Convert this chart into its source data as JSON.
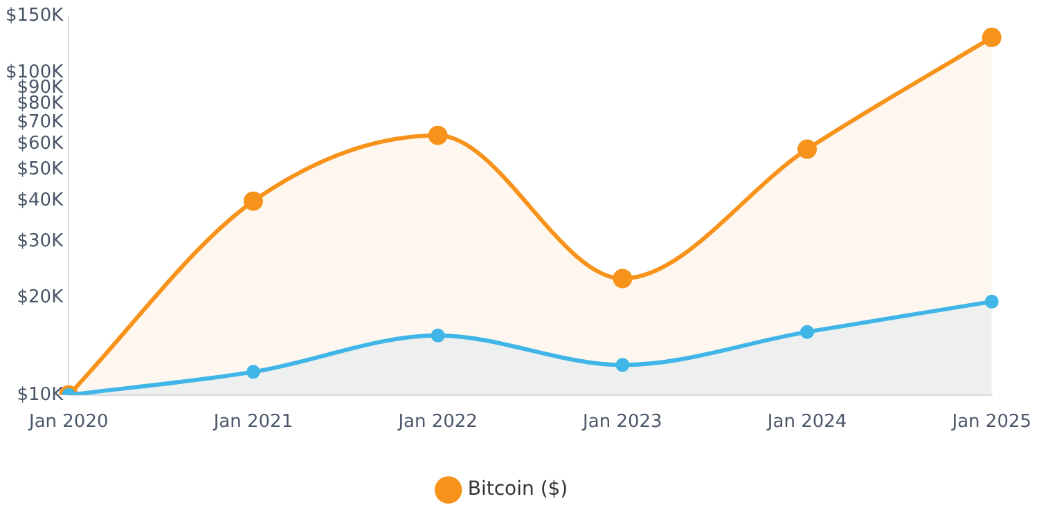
{
  "chart_data": {
    "type": "area",
    "categories": [
      "Jan 2020",
      "Jan 2021",
      "Jan 2022",
      "Jan 2023",
      "Jan 2024",
      "Jan 2025"
    ],
    "series": [
      {
        "name": "Bitcoin ($)",
        "color": "#f7931a",
        "values": [
          10000,
          40000,
          64000,
          23000,
          58000,
          129000
        ]
      },
      {
        "color": "#3fb5e8",
        "values": [
          10000,
          11800,
          15300,
          12400,
          15700,
          19500
        ]
      }
    ],
    "log": true,
    "ylim": [
      10000,
      150000
    ],
    "yticks": [
      {
        "value": 10000,
        "label": "$10K"
      },
      {
        "value": 20000,
        "label": "$20K"
      },
      {
        "value": 30000,
        "label": "$30K"
      },
      {
        "value": 40000,
        "label": "$40K"
      },
      {
        "value": 50000,
        "label": "$50K"
      },
      {
        "value": 60000,
        "label": "$60K"
      },
      {
        "value": 70000,
        "label": "$70K"
      },
      {
        "value": 80000,
        "label": "$80K"
      },
      {
        "value": 90000,
        "label": "$90K"
      },
      {
        "value": 100000,
        "label": "$100K"
      },
      {
        "value": 150000,
        "label": "$150K"
      }
    ],
    "grid": false,
    "legend": "bottom",
    "marker": "circle",
    "line_style": "solid"
  }
}
